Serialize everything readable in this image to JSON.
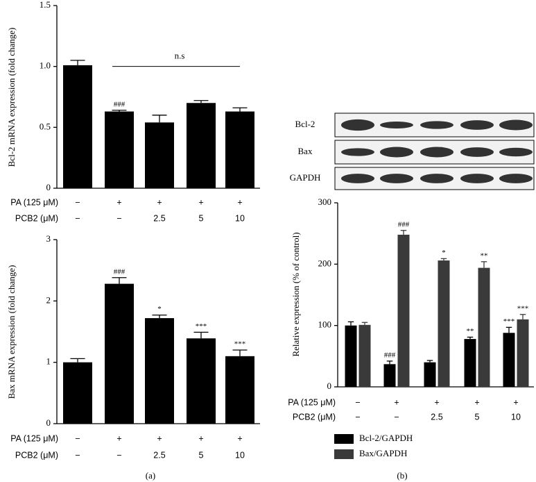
{
  "chart_data": [
    {
      "type": "bar",
      "ylabel": "Bcl-2 mRNA expression (fold change)",
      "values": [
        1.01,
        0.63,
        0.54,
        0.7,
        0.63
      ],
      "errors": [
        0.04,
        0.01,
        0.06,
        0.02,
        0.03
      ],
      "color": "#000000",
      "annotations": [
        null,
        "###",
        null,
        null,
        null
      ],
      "bracket_label": "n.s",
      "ylim": [
        0,
        1.5
      ],
      "yticks": [
        0,
        0.5,
        {
          "value": 1,
          "label": "1.0"
        },
        1.5
      ],
      "treatments": [
        {
          "name": "PA (125 μM)",
          "labels": [
            "−",
            "+",
            "+",
            "+",
            "+"
          ]
        },
        {
          "name": "PCB2 (μM)",
          "labels": [
            "−",
            "−",
            "2.5",
            "5",
            "10"
          ]
        }
      ]
    },
    {
      "type": "bar",
      "ylabel": "Bax mRNA expression (fold change)",
      "values": [
        1.0,
        2.28,
        1.72,
        1.39,
        1.1
      ],
      "errors": [
        0.06,
        0.1,
        0.05,
        0.1,
        0.1
      ],
      "color": "#000000",
      "annotations": [
        null,
        "###",
        "*",
        "***",
        "***"
      ],
      "ylim": [
        0,
        3
      ],
      "yticks": [
        0,
        1,
        2,
        3
      ],
      "treatments": [
        {
          "name": "PA (125 μM)",
          "labels": [
            "−",
            "+",
            "+",
            "+",
            "+"
          ]
        },
        {
          "name": "PCB2 (μM)",
          "labels": [
            "−",
            "−",
            "2.5",
            "5",
            "10"
          ]
        }
      ]
    },
    {
      "type": "grouped_bar",
      "ylabel": "Relative expression (% of control)",
      "series": [
        {
          "name": "Bcl-2/GAPDH",
          "color": "#000000",
          "values": [
            100,
            37,
            40,
            78,
            88
          ],
          "errors": [
            6,
            5,
            3,
            3,
            9
          ],
          "annotations": [
            null,
            "###",
            null,
            "**",
            "***"
          ]
        },
        {
          "name": "Bax/GAPDH",
          "color": "#3a3a3a",
          "values": [
            101,
            248,
            206,
            194,
            110
          ],
          "errors": [
            4,
            7,
            3,
            10,
            8
          ],
          "annotations": [
            null,
            "###",
            "*",
            "**",
            "***"
          ]
        }
      ],
      "ylim": [
        0,
        300
      ],
      "yticks": [
        0,
        100,
        200,
        300
      ],
      "treatments": [
        {
          "name": "PA (125 μM)",
          "labels": [
            "−",
            "+",
            "+",
            "+",
            "+"
          ]
        },
        {
          "name": "PCB2 (μM)",
          "labels": [
            "−",
            "−",
            "2.5",
            "5",
            "10"
          ]
        }
      ]
    }
  ],
  "blot": {
    "rows": [
      "Bcl-2",
      "Bax",
      "GAPDH"
    ]
  },
  "panels": [
    "(a)",
    "(b)"
  ]
}
